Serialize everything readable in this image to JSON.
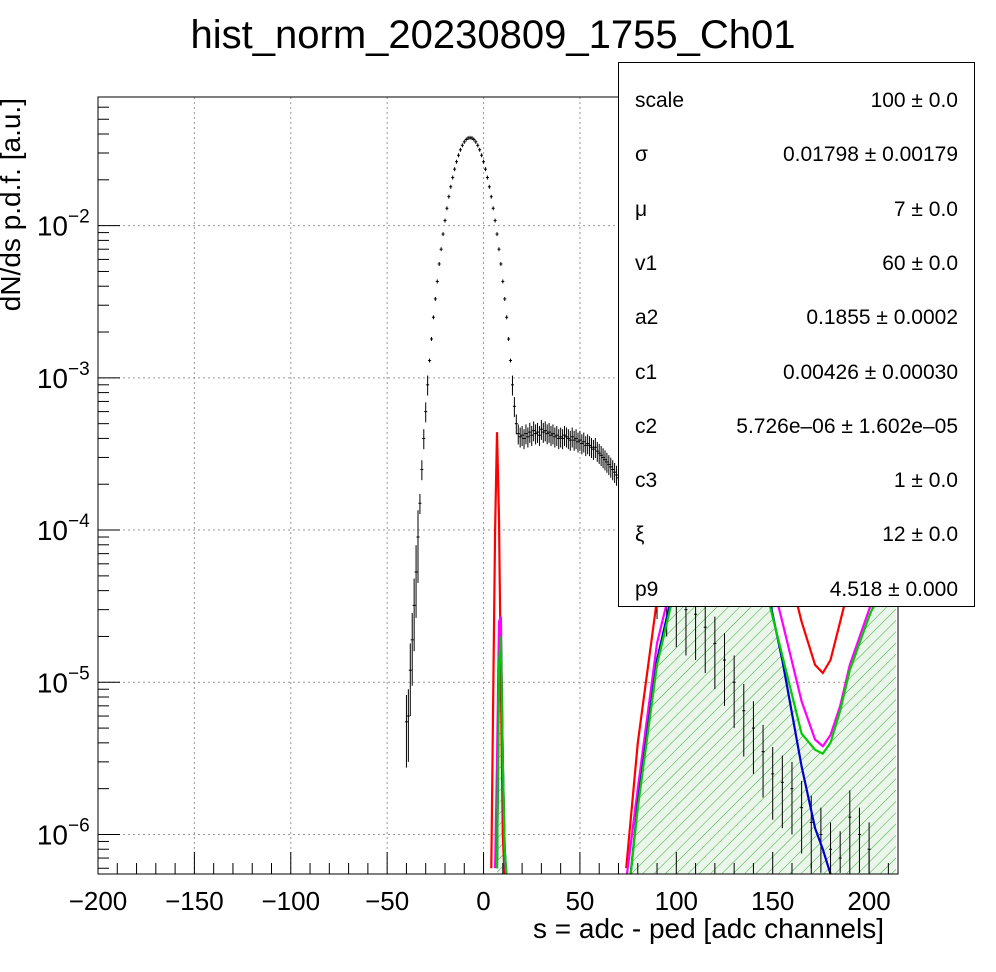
{
  "chart_data": {
    "type": "scatter",
    "title": "hist_norm_20230809_1755_Ch01",
    "xlabel": "s = adc - ped [adc channels]",
    "ylabel": "dN/ds p.d.f. [a.u.]",
    "xlim": [
      -200,
      215
    ],
    "ylim": [
      5.5e-07,
      0.07
    ],
    "yscale": "log",
    "grid": true,
    "xticks": [
      -200,
      -150,
      -100,
      -50,
      0,
      50,
      100,
      150,
      200
    ],
    "xtick_labels": [
      "−200",
      "−150",
      "−100",
      "−50",
      "0",
      "50",
      "100",
      "150",
      "200"
    ],
    "yticks": [
      1e-06,
      1e-05,
      0.0001,
      0.001,
      0.01
    ],
    "ytick_exponents": [
      "−6",
      "−5",
      "−4",
      "−3",
      "−2"
    ],
    "ytick_base": "10",
    "legend_position": "top-right",
    "data_points": {
      "x": [
        -40,
        -39,
        -38,
        -37,
        -36,
        -35,
        -34,
        -33,
        -32,
        -31,
        -30,
        -29,
        -28,
        -27,
        -26,
        -25,
        -24,
        -23,
        -22,
        -21,
        -20,
        -19,
        -18,
        -17,
        -16,
        -15,
        -14,
        -13,
        -12,
        -11,
        -10,
        -9,
        -8,
        -7,
        -6,
        -5,
        -4,
        -3,
        -2,
        -1,
        0,
        1,
        2,
        3,
        4,
        5,
        6,
        7,
        8,
        9,
        10,
        11,
        12,
        13,
        14,
        15,
        16,
        17,
        18,
        19,
        20,
        21,
        22,
        23,
        24,
        25,
        26,
        27,
        28,
        29,
        30,
        31,
        32,
        33,
        34,
        35,
        36,
        37,
        38,
        39,
        40,
        41,
        42,
        43,
        44,
        45,
        46,
        47,
        48,
        49,
        50,
        51,
        52,
        53,
        54,
        55,
        56,
        57,
        58,
        59,
        60,
        61,
        62,
        63,
        64,
        65,
        66,
        67,
        68,
        69,
        70,
        75,
        80,
        85,
        90,
        95,
        100,
        105,
        110,
        115,
        120,
        125,
        130,
        135,
        140,
        145,
        150,
        155,
        160,
        165,
        170,
        175,
        180,
        185,
        190,
        195,
        200
      ],
      "y": [
        5.5e-06,
        6e-06,
        1.2e-05,
        1.9e-05,
        3.2e-05,
        5.3e-05,
        9e-05,
        0.00015,
        0.00025,
        0.0004,
        0.0006,
        0.0009,
        0.0013,
        0.0018,
        0.0025,
        0.0033,
        0.0043,
        0.0056,
        0.007,
        0.0088,
        0.0108,
        0.013,
        0.0155,
        0.018,
        0.0207,
        0.0235,
        0.0263,
        0.029,
        0.0315,
        0.0337,
        0.0355,
        0.0368,
        0.0376,
        0.0378,
        0.0376,
        0.0368,
        0.0355,
        0.0337,
        0.0315,
        0.029,
        0.0263,
        0.0235,
        0.0207,
        0.018,
        0.0155,
        0.013,
        0.0108,
        0.0088,
        0.007,
        0.0056,
        0.0043,
        0.0033,
        0.0025,
        0.0018,
        0.0013,
        0.0009,
        0.00065,
        0.0005,
        0.00043,
        0.00041,
        0.00042,
        0.0004,
        0.00043,
        0.00041,
        0.00044,
        0.00042,
        0.00045,
        0.00043,
        0.00044,
        0.00042,
        0.00046,
        0.00044,
        0.00045,
        0.00043,
        0.00044,
        0.00042,
        0.00043,
        0.00041,
        0.00042,
        0.0004,
        0.00041,
        0.0004,
        0.00042,
        0.00041,
        0.0004,
        0.00039,
        0.00041,
        0.00039,
        0.0004,
        0.00038,
        0.00039,
        0.00037,
        0.00038,
        0.00036,
        0.00037,
        0.00036,
        0.00035,
        0.00034,
        0.00035,
        0.00033,
        0.00032,
        0.00031,
        0.0003,
        0.00029,
        0.00028,
        0.00027,
        0.00026,
        0.00025,
        0.00024,
        0.00023,
        0.00022,
        0.00016,
        0.00011,
        7.5e-05,
        5.2e-05,
        4e-05,
        3.4e-05,
        3e-05,
        2.8e-05,
        2.3e-05,
        1.8e-05,
        1.4e-05,
        1e-05,
        6.5e-06,
        5e-06,
        3.5e-06,
        2.5e-06,
        2.2e-06,
        2e-06,
        1.5e-06,
        1.2e-06,
        1e-06,
        8e-07,
        7e-07,
        1.3e-06,
        1e-06,
        8e-07
      ]
    },
    "curves": [
      {
        "color": "#ff0000",
        "x": [
          4,
          5,
          6,
          7,
          8,
          9,
          10,
          11,
          74,
          80,
          90,
          100,
          110,
          120,
          127,
          135,
          145,
          155,
          165,
          172,
          176,
          180,
          185,
          190,
          200,
          210,
          214
        ],
        "y": [
          6e-07,
          8e-06,
          0.0001,
          0.00044,
          0.00012,
          1e-05,
          1e-06,
          5e-07,
          6e-07,
          4e-06,
          3.5e-05,
          0.00013,
          0.0003,
          0.00043,
          0.00046,
          0.0004,
          0.00023,
          8e-05,
          2.5e-05,
          1.3e-05,
          1.15e-05,
          1.4e-05,
          2.5e-05,
          4.5e-05,
          0.00012,
          0.00032,
          0.00045
        ]
      },
      {
        "color": "#ff00ff",
        "x": [
          6,
          7,
          8,
          9,
          10,
          11,
          12,
          74,
          80,
          90,
          100,
          110,
          120,
          127,
          135,
          145,
          155,
          165,
          172,
          176,
          180,
          185,
          190,
          200,
          210,
          214
        ],
        "y": [
          6e-07,
          3e-06,
          2.5e-05,
          2.7e-05,
          3e-06,
          7e-07,
          5e-07,
          5e-07,
          2e-06,
          1.8e-05,
          6e-05,
          0.00012,
          0.000155,
          0.00016,
          0.00014,
          8e-05,
          2.5e-05,
          7.5e-06,
          4.2e-06,
          3.8e-06,
          4.5e-06,
          7e-06,
          1.3e-05,
          3e-05,
          6e-05,
          7e-05
        ]
      },
      {
        "color": "#0000cc",
        "x": [
          7,
          8,
          9,
          10,
          11,
          12,
          76,
          80,
          90,
          100,
          110,
          120,
          127,
          135,
          145,
          155,
          165,
          172,
          176,
          180
        ],
        "y": [
          6e-07,
          1.3e-05,
          1.9e-05,
          3e-06,
          8e-07,
          5e-07,
          5e-07,
          1.6e-06,
          1.4e-05,
          5e-05,
          0.0001,
          0.000125,
          0.000128,
          0.00011,
          5.5e-05,
          1.4e-05,
          2.8e-06,
          1.1e-06,
          8e-07,
          5.5e-07
        ]
      },
      {
        "color": "#00cc00",
        "x": [
          7,
          8,
          9,
          10,
          11,
          12,
          76,
          80,
          90,
          100,
          110,
          120,
          127,
          135,
          145,
          155,
          165,
          172,
          176,
          180,
          185,
          190,
          200,
          210,
          214
        ],
        "y": [
          6e-07,
          1.3e-05,
          2e-05,
          3e-06,
          8e-07,
          5e-07,
          5e-07,
          1.5e-06,
          1.3e-05,
          4.5e-05,
          8.5e-05,
          0.000105,
          0.000107,
          9e-05,
          4.8e-05,
          1.5e-05,
          4.6e-06,
          3.6e-06,
          3.4e-06,
          4e-06,
          6.5e-06,
          1.2e-05,
          2.7e-05,
          5.5e-05,
          6.3e-05
        ]
      }
    ],
    "stats": [
      {
        "name": "scale",
        "value": "100 ± 0.0"
      },
      {
        "name": "σ",
        "value": "0.01798 ± 0.00179"
      },
      {
        "name": "μ",
        "value": "7 ± 0.0"
      },
      {
        "name": "v1",
        "value": "60 ± 0.0"
      },
      {
        "name": "a2",
        "value": "0.1855 ± 0.0002"
      },
      {
        "name": "c1",
        "value": "0.00426 ± 0.00030"
      },
      {
        "name": "c2",
        "value": "5.726e–06 ± 1.602e–05"
      },
      {
        "name": "c3",
        "value": "1 ± 0.0"
      },
      {
        "name": "ξ",
        "value": "12 ± 0.0"
      },
      {
        "name": "p9",
        "value": "4.518 ± 0.000"
      }
    ]
  }
}
